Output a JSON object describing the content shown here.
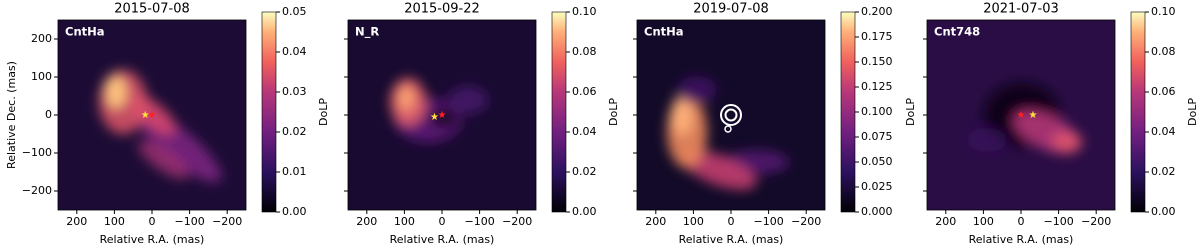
{
  "chart_data": [
    {
      "type": "image",
      "title": "2015-07-08",
      "label": "CntHa",
      "xlabel": "Relative R.A. (mas)",
      "ylabel": "Relative Dec. (mas)",
      "xlim": [
        250,
        -250
      ],
      "ylim": [
        -250,
        250
      ],
      "xticks": [
        200,
        100,
        0,
        {
          "value": -100,
          "label": "−100"
        },
        {
          "value": -200,
          "label": "−200"
        }
      ],
      "yticks": [
        {
          "value": -200,
          "label": "−200"
        },
        {
          "value": -100,
          "label": "−100"
        },
        0,
        100,
        200
      ],
      "clabel": "DoLP",
      "clim": [
        0,
        0.05
      ],
      "cticks": [
        {
          "value": 0,
          "label": "0.00"
        },
        0.01,
        0.02,
        0.03,
        0.04,
        0.05
      ],
      "stars": [
        {
          "x": 18,
          "y": 0,
          "color": "#ffe03a"
        },
        {
          "x": 0,
          "y": 0,
          "color": "#ff2020"
        }
      ]
    },
    {
      "type": "image",
      "title": "2015-09-22",
      "label": "N_R",
      "xlabel": "Relative R.A. (mas)",
      "xlim": [
        250,
        -250
      ],
      "ylim": [
        -250,
        250
      ],
      "xticks": [
        200,
        100,
        0,
        {
          "value": -100,
          "label": "−100"
        },
        {
          "value": -200,
          "label": "−200"
        }
      ],
      "yticks": [
        -200,
        -100,
        0,
        100,
        200
      ],
      "clabel": "DoLP",
      "clim": [
        0,
        0.1
      ],
      "cticks": [
        {
          "value": 0,
          "label": "0.00"
        },
        0.02,
        0.04,
        0.06,
        0.08,
        {
          "value": 0.1,
          "label": "0.10"
        }
      ],
      "stars": [
        {
          "x": 20,
          "y": -5,
          "color": "#ffe03a"
        },
        {
          "x": 0,
          "y": 0,
          "color": "#ff2020"
        }
      ]
    },
    {
      "type": "image",
      "title": "2019-07-08",
      "label": "CntHa",
      "xlabel": "Relative R.A. (mas)",
      "xlim": [
        250,
        -250
      ],
      "ylim": [
        -250,
        250
      ],
      "xticks": [
        200,
        100,
        0,
        {
          "value": -100,
          "label": "−100"
        },
        {
          "value": -200,
          "label": "−200"
        }
      ],
      "yticks": [
        -200,
        -100,
        0,
        100,
        200
      ],
      "clabel": "DoLP",
      "clim": [
        0,
        0.2
      ],
      "cticks": [
        {
          "value": 0,
          "label": "0.000"
        },
        0.025,
        {
          "value": 0.05,
          "label": "0.050"
        },
        0.075,
        {
          "value": 0.1,
          "label": "0.100"
        },
        0.125,
        {
          "value": 0.15,
          "label": "0.150"
        },
        0.175,
        {
          "value": 0.2,
          "label": "0.200"
        }
      ]
    },
    {
      "type": "image",
      "title": "2021-07-03",
      "label": "Cnt748",
      "xlabel": "Relative R.A. (mas)",
      "xlim": [
        250,
        -250
      ],
      "ylim": [
        -250,
        250
      ],
      "xticks": [
        200,
        100,
        0,
        {
          "value": -100,
          "label": "−100"
        },
        {
          "value": -200,
          "label": "−200"
        }
      ],
      "yticks": [
        -200,
        -100,
        0,
        100,
        200
      ],
      "clabel": "DoLP",
      "clim": [
        0,
        0.1
      ],
      "cticks": [
        {
          "value": 0,
          "label": "0.00"
        },
        0.02,
        0.04,
        0.06,
        0.08,
        {
          "value": 0.1,
          "label": "0.10"
        }
      ],
      "stars": [
        {
          "x": 0,
          "y": 0,
          "color": "#ff2020"
        },
        {
          "x": -32,
          "y": 0,
          "color": "#ffe03a"
        }
      ]
    }
  ]
}
